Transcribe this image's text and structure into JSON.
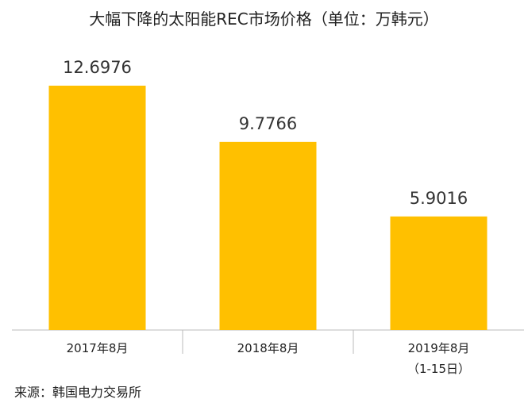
{
  "chart_data": {
    "type": "bar",
    "title": "大幅下降的太阳能REC市场价格（单位：万韩元）",
    "categories": [
      "2017年8月",
      "2018年8月",
      "2019年8月\n（1-15日）"
    ],
    "values": [
      12.6976,
      9.7766,
      5.9016
    ],
    "color": "#ffc000",
    "source": "来源：韩国电力交易所"
  }
}
